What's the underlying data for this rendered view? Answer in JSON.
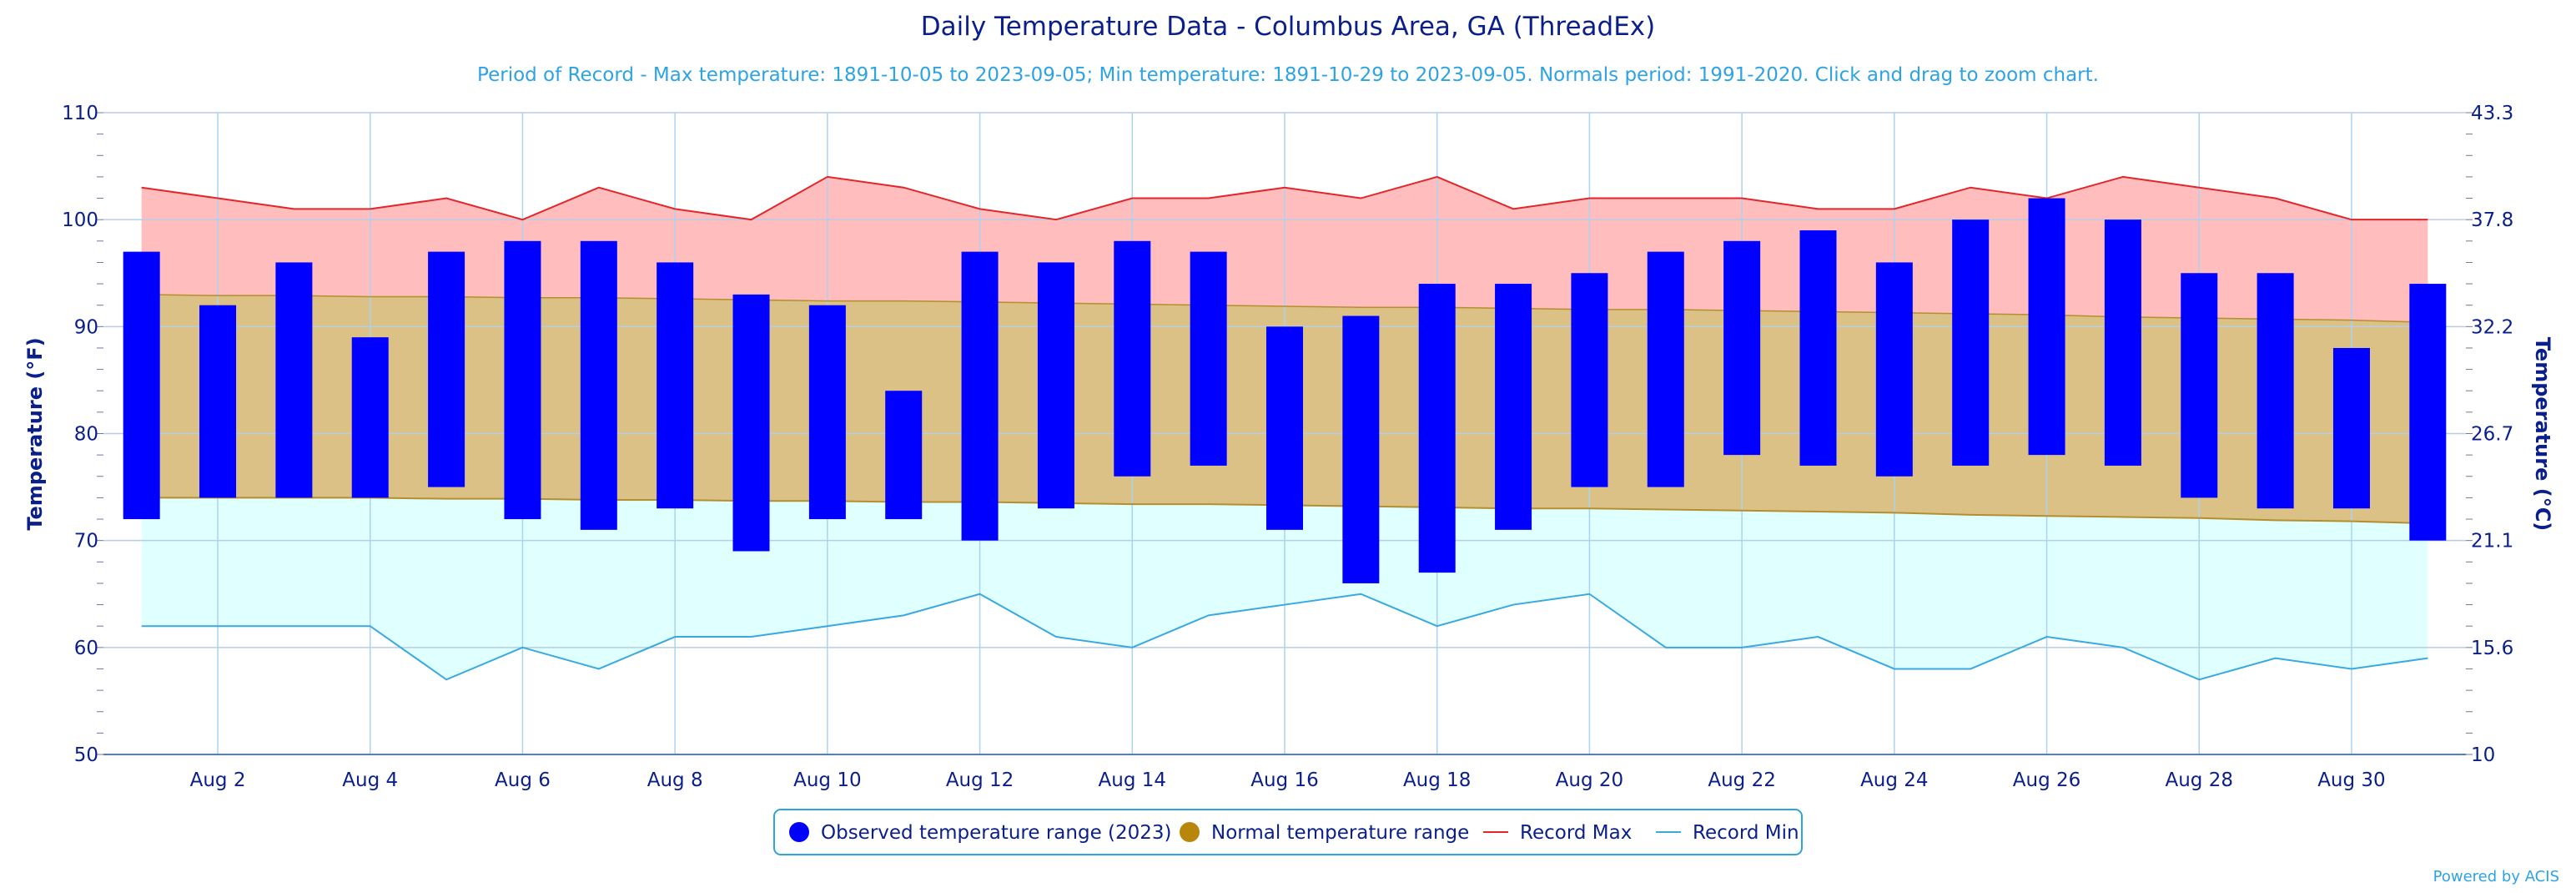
{
  "chart_data": {
    "type": "bar",
    "title": "Daily Temperature Data - Columbus Area, GA (ThreadEx)",
    "subtitle": "Period of Record - Max temperature: 1891-10-05 to 2023-09-05; Min temperature: 1891-10-29 to 2023-09-05. Normals period: 1991-2020. Click and drag to zoom chart.",
    "ylabel": "Temperature (°F)",
    "ylabel_right": "Temperature (°C)",
    "ylim": [
      50,
      110
    ],
    "ylim_right": [
      10,
      43.3
    ],
    "y_ticks": [
      "50",
      "60",
      "70",
      "80",
      "90",
      "100",
      "110"
    ],
    "y_ticks_right": [
      "10",
      "15.6",
      "21.1",
      "26.7",
      "32.2",
      "37.8",
      "43.3"
    ],
    "x_tick_labels": [
      {
        "day": 2,
        "label": "Aug 2"
      },
      {
        "day": 4,
        "label": "Aug 4"
      },
      {
        "day": 6,
        "label": "Aug 6"
      },
      {
        "day": 8,
        "label": "Aug 8"
      },
      {
        "day": 10,
        "label": "Aug 10"
      },
      {
        "day": 12,
        "label": "Aug 12"
      },
      {
        "day": 14,
        "label": "Aug 14"
      },
      {
        "day": 16,
        "label": "Aug 16"
      },
      {
        "day": 18,
        "label": "Aug 18"
      },
      {
        "day": 20,
        "label": "Aug 20"
      },
      {
        "day": 22,
        "label": "Aug 22"
      },
      {
        "day": 24,
        "label": "Aug 24"
      },
      {
        "day": 26,
        "label": "Aug 26"
      },
      {
        "day": 28,
        "label": "Aug 28"
      },
      {
        "day": 30,
        "label": "Aug 30"
      }
    ],
    "grid": true,
    "legend_position": "bottom-center",
    "days": [
      1,
      2,
      3,
      4,
      5,
      6,
      7,
      8,
      9,
      10,
      11,
      12,
      13,
      14,
      15,
      16,
      17,
      18,
      19,
      20,
      21,
      22,
      23,
      24,
      25,
      26,
      27,
      28,
      29,
      30,
      31
    ],
    "series": [
      {
        "name": "Observed temperature range (2023)",
        "color": "#0000ff",
        "high": [
          97,
          92,
          96,
          89,
          97,
          98,
          98,
          96,
          93,
          92,
          84,
          97,
          96,
          98,
          97,
          90,
          91,
          94,
          94,
          95,
          97,
          98,
          99,
          96,
          100,
          102,
          100,
          95,
          95,
          88,
          94
        ],
        "low": [
          72,
          74,
          74,
          74,
          75,
          72,
          71,
          73,
          69,
          72,
          72,
          70,
          73,
          76,
          77,
          71,
          66,
          67,
          71,
          75,
          75,
          78,
          77,
          76,
          77,
          78,
          77,
          74,
          73,
          73,
          70
        ]
      },
      {
        "name": "Normal temperature range",
        "color": "#b8860b",
        "high": [
          93,
          92.9,
          92.9,
          92.8,
          92.8,
          92.7,
          92.7,
          92.6,
          92.5,
          92.4,
          92.4,
          92.3,
          92.2,
          92.1,
          92.0,
          91.9,
          91.8,
          91.8,
          91.7,
          91.6,
          91.6,
          91.5,
          91.4,
          91.3,
          91.2,
          91.1,
          90.9,
          90.8,
          90.7,
          90.6,
          90.4
        ],
        "low": [
          74,
          74,
          74,
          74,
          73.9,
          73.9,
          73.8,
          73.8,
          73.7,
          73.7,
          73.6,
          73.6,
          73.5,
          73.4,
          73.4,
          73.3,
          73.2,
          73.1,
          73.0,
          73.0,
          72.9,
          72.8,
          72.7,
          72.6,
          72.4,
          72.3,
          72.2,
          72.1,
          71.9,
          71.8,
          71.6
        ]
      },
      {
        "name": "Record Max",
        "color": "#e3262a",
        "fill": "#ffbdbd",
        "values": [
          103,
          102,
          101,
          101,
          102,
          100,
          103,
          101,
          100,
          104,
          103,
          101,
          100,
          102,
          102,
          103,
          102,
          104,
          101,
          102,
          102,
          102,
          101,
          101,
          103,
          102,
          104,
          103,
          102,
          100,
          100
        ]
      },
      {
        "name": "Record Min",
        "color": "#39a9e0",
        "fill": "#e0ffff",
        "values": [
          62,
          62,
          62,
          62,
          57,
          60,
          58,
          61,
          61,
          62,
          63,
          65,
          61,
          60,
          63,
          64,
          65,
          62,
          64,
          65,
          60,
          60,
          61,
          58,
          58,
          61,
          60,
          57,
          59,
          58,
          59
        ]
      }
    ]
  },
  "credits": "Powered by ACIS"
}
